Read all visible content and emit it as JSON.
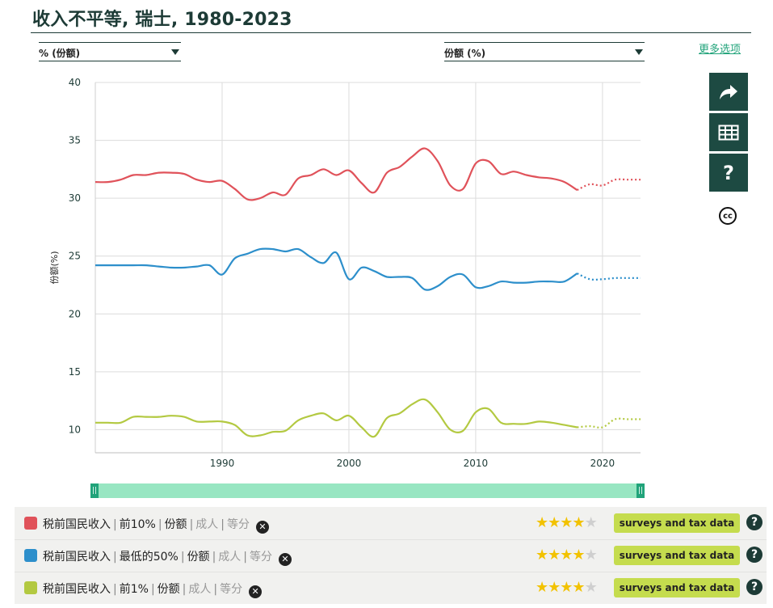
{
  "header": {
    "title": "收入不平等, 瑞士, 1980-2023",
    "more_options": "更多选项"
  },
  "controls": {
    "left_dropdown": "% (份额)",
    "right_dropdown": "份额 (%)"
  },
  "sidebar": {
    "icons": [
      "share-icon",
      "table-icon",
      "help-icon",
      "cc-license-icon"
    ],
    "help_label": "?",
    "cc_label": "cc"
  },
  "slider": {
    "left_handle": "||",
    "right_handle": "||"
  },
  "legend": {
    "rows": [
      {
        "name": "税前国民收入",
        "group": "前10%",
        "measure": "份额",
        "pop": "成人",
        "unit": "等分",
        "rating": 4,
        "source": "surveys and tax data",
        "color": "#e0525a"
      },
      {
        "name": "税前国民收入",
        "group": "最低的50%",
        "measure": "份额",
        "pop": "成人",
        "unit": "等分",
        "rating": 4,
        "source": "surveys and tax data",
        "color": "#2d8fcb"
      },
      {
        "name": "税前国民收入",
        "group": "前1%",
        "measure": "份额",
        "pop": "成人",
        "unit": "等分",
        "rating": 4,
        "source": "surveys and tax data",
        "color": "#b3c941"
      }
    ],
    "remove_label": "✕",
    "help_label": "?"
  },
  "chart_data": {
    "type": "line",
    "ylabel": "份额(%)",
    "xlabel": "",
    "xlim": [
      1980,
      2023
    ],
    "ylim": [
      8,
      40
    ],
    "yticks": [
      10,
      15,
      20,
      25,
      30,
      35,
      40
    ],
    "xticks": [
      1990,
      2000,
      2010,
      2020
    ],
    "grid": true,
    "dotted_from": 2018,
    "x": [
      1980,
      1981,
      1982,
      1983,
      1984,
      1985,
      1986,
      1987,
      1988,
      1989,
      1990,
      1991,
      1992,
      1993,
      1994,
      1995,
      1996,
      1997,
      1998,
      1999,
      2000,
      2001,
      2002,
      2003,
      2004,
      2005,
      2006,
      2007,
      2008,
      2009,
      2010,
      2011,
      2012,
      2013,
      2014,
      2015,
      2016,
      2017,
      2018,
      2019,
      2020,
      2021,
      2022,
      2023
    ],
    "series": [
      {
        "name": "前10%",
        "color": "#e0525a",
        "values": [
          31.4,
          31.4,
          31.6,
          32.0,
          32.0,
          32.2,
          32.2,
          32.1,
          31.6,
          31.4,
          31.5,
          30.8,
          29.9,
          30.0,
          30.5,
          30.3,
          31.7,
          32.0,
          32.5,
          32.0,
          32.4,
          31.3,
          30.5,
          32.2,
          32.7,
          33.6,
          34.3,
          33.2,
          31.1,
          30.8,
          33.0,
          33.2,
          32.1,
          32.3,
          32.0,
          31.8,
          31.7,
          31.4,
          30.7,
          31.2,
          31.1,
          31.6,
          31.6,
          31.6
        ]
      },
      {
        "name": "最低的50%",
        "color": "#2d8fcb",
        "values": [
          24.2,
          24.2,
          24.2,
          24.2,
          24.2,
          24.1,
          24.0,
          24.0,
          24.1,
          24.2,
          23.4,
          24.8,
          25.2,
          25.6,
          25.6,
          25.4,
          25.6,
          24.9,
          24.4,
          25.3,
          23.0,
          24.0,
          23.7,
          23.2,
          23.2,
          23.1,
          22.1,
          22.4,
          23.2,
          23.4,
          22.3,
          22.4,
          22.8,
          22.7,
          22.7,
          22.8,
          22.8,
          22.8,
          23.5,
          23.0,
          23.0,
          23.1,
          23.1,
          23.1
        ]
      },
      {
        "name": "前1%",
        "color": "#b3c941",
        "values": [
          10.6,
          10.6,
          10.6,
          11.1,
          11.1,
          11.1,
          11.2,
          11.1,
          10.7,
          10.7,
          10.7,
          10.4,
          9.5,
          9.5,
          9.8,
          9.9,
          10.8,
          11.2,
          11.4,
          10.8,
          11.2,
          10.2,
          9.4,
          11.0,
          11.4,
          12.2,
          12.6,
          11.5,
          10.0,
          9.9,
          11.5,
          11.8,
          10.6,
          10.5,
          10.5,
          10.7,
          10.6,
          10.4,
          10.2,
          10.3,
          10.2,
          10.9,
          10.9,
          10.9
        ]
      }
    ]
  }
}
